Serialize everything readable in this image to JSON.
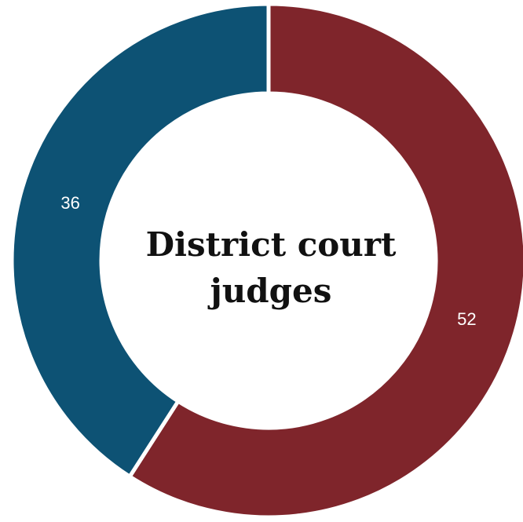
{
  "chart_data": {
    "type": "pie",
    "variant": "donut",
    "title_lines": [
      "District court",
      "judges"
    ],
    "slices": [
      {
        "label": "52",
        "value": 52,
        "color": "#7f252b"
      },
      {
        "label": "36",
        "value": 36,
        "color": "#0d5274"
      }
    ],
    "start": "12 o'clock",
    "direction": "clockwise",
    "legend": "none",
    "background": "#ffffff"
  }
}
